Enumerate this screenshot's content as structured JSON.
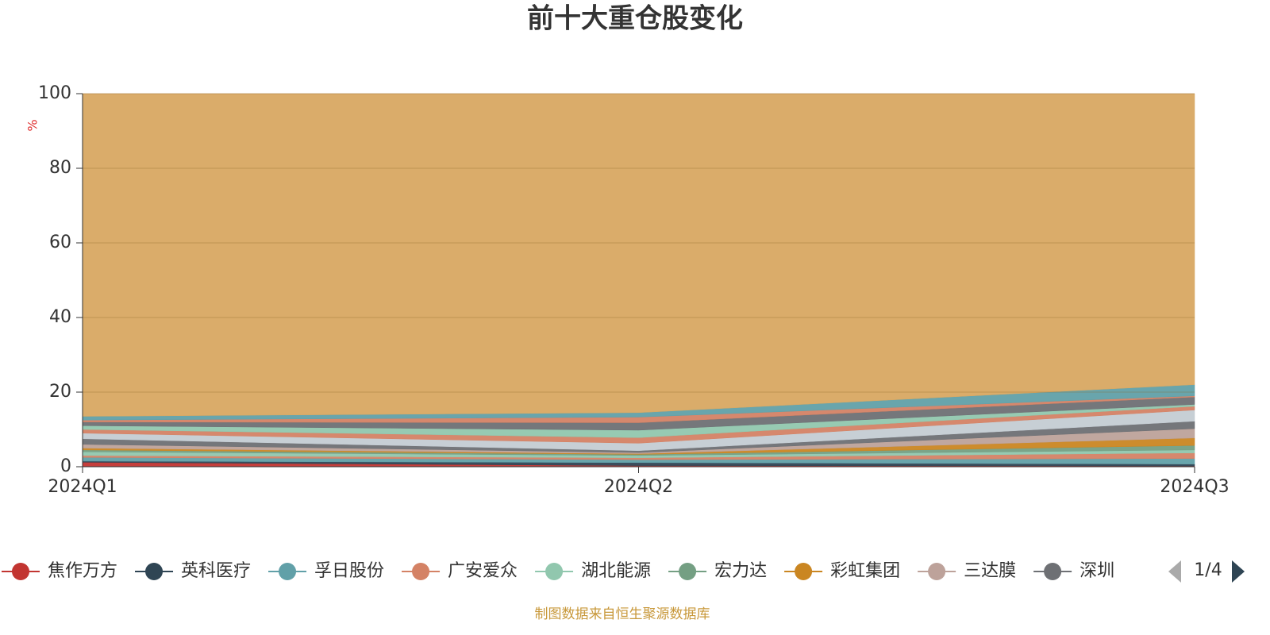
{
  "chart_data": {
    "type": "stacked_area",
    "title": "前十大重仓股变化",
    "y_label": "%",
    "categories": [
      "2024Q1",
      "2024Q2",
      "2024Q3"
    ],
    "ylim": [
      0,
      100
    ],
    "yticks": [
      0,
      20,
      40,
      60,
      80,
      100
    ],
    "grid": true,
    "series": [
      {
        "name": "焦作万方",
        "color": "#c23531",
        "values": [
          1.2,
          0.3,
          0.2
        ]
      },
      {
        "name": "英科医疗",
        "color": "#2f4554",
        "values": [
          0.3,
          0.8,
          0.5
        ]
      },
      {
        "name": "孚日股份",
        "color": "#61a0a8",
        "values": [
          1.0,
          0.8,
          1.5
        ]
      },
      {
        "name": "广安爱众",
        "color": "#d48265",
        "values": [
          0.5,
          0.5,
          1.5
        ]
      },
      {
        "name": "湖北能源",
        "color": "#91c7ae",
        "values": [
          1.0,
          0.6,
          0.8
        ]
      },
      {
        "name": "宏力达",
        "color": "#749f83",
        "values": [
          0.5,
          0.3,
          1.2
        ]
      },
      {
        "name": "彩虹集团",
        "color": "#ca8622",
        "values": [
          0.5,
          0.2,
          2.0
        ]
      },
      {
        "name": "三达膜",
        "color": "#bda29a",
        "values": [
          1.0,
          0.3,
          2.5
        ]
      },
      {
        "name": "深圳",
        "color": "#6e7074",
        "values": [
          1.5,
          0.5,
          2.0
        ]
      },
      {
        "color": "#c4ccd3",
        "values": [
          1.5,
          2.0,
          3.0
        ]
      },
      {
        "color": "#d48265",
        "values": [
          1.0,
          1.5,
          1.0
        ]
      },
      {
        "color": "#91c7ae",
        "values": [
          1.0,
          2.0,
          0.5
        ]
      },
      {
        "color": "#6e7074",
        "values": [
          1.0,
          2.0,
          2.0
        ]
      },
      {
        "color": "#d48265",
        "values": [
          0.5,
          1.5,
          0.3
        ]
      },
      {
        "color": "#61a0a8",
        "values": [
          1.0,
          1.2,
          3.0
        ]
      },
      {
        "color": "#d8a862",
        "values": [
          86.5,
          85.5,
          78.0
        ]
      }
    ],
    "legend_page": "1/4",
    "source": "制图数据来自恒生聚源数据库"
  }
}
